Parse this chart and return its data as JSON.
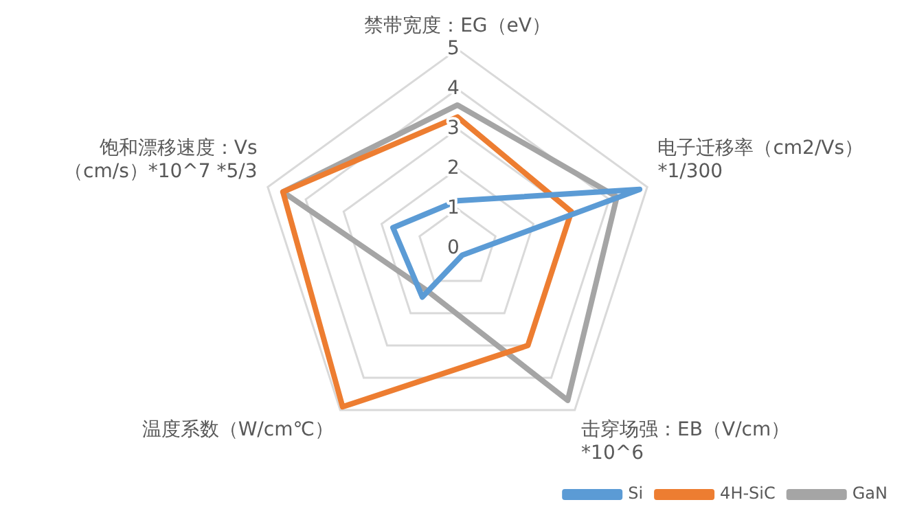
{
  "chart_data": {
    "type": "radar",
    "categories": [
      "禁带宽度：EG（eV）",
      "电子迁移率（cm2/Vs）\n*1/300",
      "击穿场强：EB（V/cm）\n*10^6",
      "温度系数（W/cm℃）",
      "饱和漂移速度：Vs\n（cm/s）*10^7 *5/3"
    ],
    "series": [
      {
        "name": "Si",
        "color": "#5b9bd5",
        "values": [
          1.2,
          4.8,
          0.2,
          1.5,
          1.7
        ]
      },
      {
        "name": "4H-SiC",
        "color": "#ed7d31",
        "values": [
          3.3,
          3.0,
          3.0,
          4.9,
          4.6
        ]
      },
      {
        "name": "GaN",
        "color": "#a5a5a5",
        "values": [
          3.6,
          4.2,
          4.7,
          1.3,
          4.6
        ]
      }
    ],
    "ylim": [
      0,
      5
    ],
    "yticks": [
      0,
      1,
      2,
      3,
      4,
      5
    ],
    "grid": true,
    "legend": "bottom right",
    "marker": "none"
  }
}
